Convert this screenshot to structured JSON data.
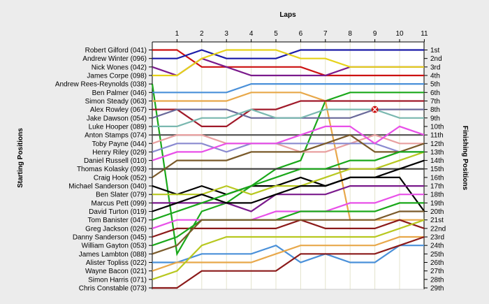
{
  "chart_data": {
    "type": "line",
    "title": "",
    "xlabel": "Laps",
    "ylabel_left": "Starting Positions",
    "ylabel_right": "Finishing Positions",
    "x": [
      0,
      1,
      2,
      3,
      4,
      5,
      6,
      7,
      8,
      9,
      10,
      11
    ],
    "x_tick_labels": [
      "1",
      "2",
      "3",
      "4",
      "5",
      "6",
      "7",
      "8",
      "9",
      "10",
      "11"
    ],
    "y_range": [
      1,
      29
    ],
    "grid": true,
    "starting_labels": [
      "Robert Gilford (041)",
      "Andrew Winter (096)",
      "Nick Wones (042)",
      "James Corpe (098)",
      "Andrew Rees-Reynolds (038)",
      "Ben Palmer (046)",
      "Simon Steady (063)",
      "Alex Rowley (067)",
      "Jake Dawson (054)",
      "Luke Hooper (089)",
      "Anton Stamps (074)",
      "Toby Payne (044)",
      "Henry Riley (029)",
      "Daniel Russell (010)",
      "Thomas Kolasky (093)",
      "Craig Hook (052)",
      "Michael Sanderson (040)",
      "Ben Slater (079)",
      "Marcus Pett (099)",
      "David Turton (019)",
      "Tom Banister (047)",
      "Greg Jackson (026)",
      "Danny Sanderson (045)",
      "William Gayton (053)",
      "James Lambton (088)",
      "Alister Topliss (022)",
      "Wayne Bacon (021)",
      "Simon Harris (071)",
      "Chris Constable (073)"
    ],
    "finishing_labels": [
      "1st",
      "2nd",
      "3rd",
      "4th",
      "5th",
      "6th",
      "7th",
      "8th",
      "9th",
      "10th",
      "11th",
      "12th",
      "13th",
      "14th",
      "15th",
      "16th",
      "17th",
      "18th",
      "19th",
      "20th",
      "21st",
      "22nd",
      "23rd",
      "24th",
      "25th",
      "26th",
      "27th",
      "28th",
      "29th"
    ],
    "series": [
      {
        "color": "#cc1111",
        "values": [
          1,
          1,
          3,
          3,
          3,
          3,
          3,
          4,
          4,
          4,
          4,
          4
        ]
      },
      {
        "color": "#1a1aa8",
        "values": [
          2,
          2,
          1,
          2,
          2,
          2,
          1,
          1,
          1,
          1,
          1,
          1
        ]
      },
      {
        "color": "#7a1a8c",
        "values": [
          3,
          4,
          2,
          3,
          4,
          4,
          4,
          4,
          3,
          3,
          3,
          3
        ]
      },
      {
        "color": "#e6d21a",
        "values": [
          4,
          4,
          2,
          1,
          1,
          1,
          2,
          2,
          3,
          3,
          3,
          3
        ]
      },
      {
        "color": "#1aa81a",
        "values": [
          5,
          25,
          20,
          19,
          17,
          15,
          14,
          7,
          6,
          6,
          6,
          6
        ]
      },
      {
        "color": "#4a90d9",
        "values": [
          6,
          6,
          6,
          6,
          5,
          5,
          5,
          5,
          5,
          5,
          5,
          5
        ]
      },
      {
        "color": "#e8a84a",
        "values": [
          7,
          7,
          7,
          7,
          6,
          6,
          6,
          7,
          21,
          21,
          21,
          21
        ]
      },
      {
        "color": "#a01a2a",
        "values": [
          8,
          8,
          10,
          10,
          8,
          8,
          7,
          7,
          7,
          7,
          7,
          7
        ]
      },
      {
        "color": "#6a6a9a",
        "values": [
          9,
          8,
          8,
          8,
          9,
          9,
          9,
          9,
          9,
          8,
          8,
          8
        ]
      },
      {
        "color": "#7ab8b0",
        "values": [
          10,
          10,
          9,
          9,
          8,
          9,
          9,
          8,
          8,
          8,
          9,
          9
        ]
      },
      {
        "color": "#5a5a5a",
        "values": [
          11,
          11,
          11,
          11,
          11,
          11,
          11,
          11,
          11,
          11,
          11,
          11
        ]
      },
      {
        "color": "#e8a0a0",
        "values": [
          12,
          11,
          11,
          12,
          12,
          12,
          13,
          13,
          12,
          11,
          12,
          12
        ]
      },
      {
        "color": "#8a8ad0",
        "values": [
          13,
          12,
          12,
          13,
          12,
          12,
          12,
          12,
          12,
          12,
          13,
          13
        ]
      },
      {
        "color": "#e850e8",
        "values": [
          14,
          13,
          13,
          12,
          12,
          12,
          11,
          10,
          10,
          12,
          10,
          11
        ]
      },
      {
        "color": "#3a3a3a",
        "values": [
          15,
          15,
          15,
          15,
          15,
          15,
          15,
          15,
          15,
          15,
          15,
          15
        ]
      },
      {
        "color": "#7a5a2a",
        "values": [
          16,
          14,
          14,
          14,
          13,
          13,
          13,
          12,
          11,
          13,
          13,
          12
        ]
      },
      {
        "color": "#000000",
        "values": [
          17,
          18,
          17,
          18,
          17,
          17,
          16,
          17,
          16,
          16,
          16,
          20
        ]
      },
      {
        "color": "#b8c820",
        "values": [
          18,
          18,
          18,
          17,
          18,
          17,
          17,
          16,
          15,
          15,
          14,
          13
        ]
      },
      {
        "color": "#7a1a8c",
        "values": [
          19,
          19,
          19,
          19,
          20,
          18,
          18,
          18,
          17,
          17,
          17,
          17
        ]
      },
      {
        "color": "#000000",
        "values": [
          20,
          19,
          18,
          19,
          19,
          18,
          17,
          17,
          16,
          16,
          15,
          14
        ]
      },
      {
        "color": "#1aa81a",
        "values": [
          21,
          20,
          19,
          18,
          17,
          16,
          15,
          15,
          14,
          14,
          13,
          13
        ]
      },
      {
        "color": "#e850e8",
        "values": [
          22,
          21,
          21,
          21,
          21,
          20,
          20,
          20,
          19,
          19,
          18,
          18
        ]
      },
      {
        "color": "#8b1a1a",
        "values": [
          23,
          22,
          22,
          22,
          22,
          22,
          21,
          22,
          22,
          22,
          21,
          22
        ]
      },
      {
        "color": "#1aa81a",
        "values": [
          24,
          23,
          21,
          21,
          21,
          21,
          20,
          20,
          20,
          20,
          19,
          19
        ]
      },
      {
        "color": "#7a5a2a",
        "values": [
          25,
          24,
          21,
          21,
          21,
          21,
          21,
          21,
          21,
          21,
          20,
          20
        ]
      },
      {
        "color": "#4a90d9",
        "values": [
          26,
          26,
          25,
          25,
          25,
          24,
          26,
          25,
          26,
          26,
          24,
          24
        ]
      },
      {
        "color": "#e8a84a",
        "values": [
          27,
          26,
          26,
          26,
          26,
          25,
          24,
          24,
          24,
          24,
          23,
          23
        ]
      },
      {
        "color": "#b8c820",
        "values": [
          28,
          27,
          24,
          23,
          23,
          23,
          23,
          23,
          23,
          23,
          22,
          21
        ]
      },
      {
        "color": "#8b1a1a",
        "values": [
          29,
          29,
          27,
          27,
          27,
          27,
          25,
          25,
          25,
          25,
          24,
          23
        ]
      }
    ],
    "marker": {
      "lap": 9,
      "position": 8,
      "color": "#cc1111"
    }
  }
}
